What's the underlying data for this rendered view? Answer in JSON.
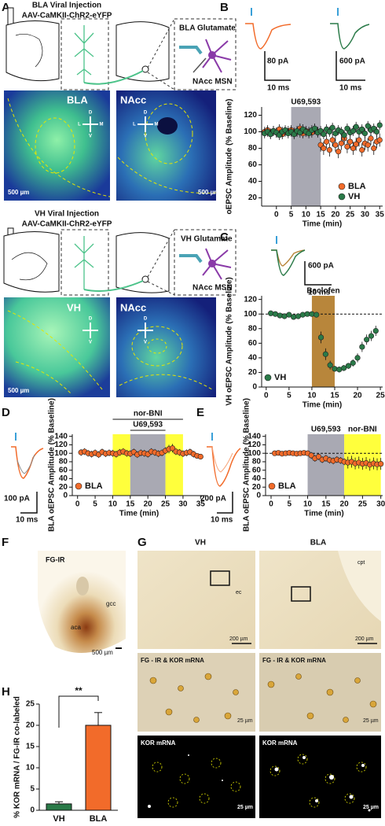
{
  "figure": {
    "A": {
      "letter": "A",
      "top": {
        "title": "BLA Viral Injection",
        "virus": "AAV-CaMKII-ChR2-eYFP",
        "inset_top": "BLA Glutamate",
        "inset_bottom": "NAcc MSN",
        "image_left": "BLA",
        "image_right": "NAcc",
        "scale_left": "500 µm",
        "scale_right": "500 µm"
      },
      "bottom": {
        "title": "VH Viral Injection",
        "virus": "AAV-CaMKII-ChR2-eYFP",
        "inset_top": "VH Glutamate",
        "inset_bottom": "NAcc MSN",
        "image_left": "VH",
        "image_right": "NAcc",
        "scale_left": "500 µm"
      },
      "compass": [
        "D",
        "V",
        "L",
        "M"
      ]
    },
    "B": {
      "letter": "B",
      "trace_left": {
        "y_scale": "80 pA",
        "x_scale": "10 ms"
      },
      "trace_right": {
        "y_scale": "600 pA",
        "x_scale": "10 ms"
      }
    },
    "C": {
      "letter": "C",
      "trace": {
        "y_scale": "600 pA",
        "x_scale": "10 ms"
      }
    },
    "D": {
      "letter": "D",
      "trace": {
        "y_scale": "100 pA",
        "x_scale": "10 ms"
      }
    },
    "E": {
      "letter": "E",
      "trace": {
        "y_scale": "200 pA",
        "x_scale": "10 ms"
      }
    },
    "F": {
      "letter": "F",
      "label": "FG-IR",
      "gcc": "gcc",
      "aca": "aca",
      "scale": "500 µm"
    },
    "G": {
      "letter": "G",
      "col_left": "VH",
      "col_right": "BLA",
      "ec": "ec",
      "cpt": "cpt",
      "scale_top": "200 µm",
      "row2_left": "FG - IR & KOR mRNA",
      "row2_right": "FG - IR &  KOR mRNA",
      "row3": "KOR mRNA",
      "scale_small": "25 µm"
    },
    "H": {
      "letter": "H"
    }
  },
  "chart_data": [
    {
      "type": "scatter",
      "xlabel": "Time (min)",
      "ylabel": "oEPSC Amplitude (% Baseline)",
      "x": [
        -4,
        -3,
        -2,
        -1,
        0,
        1,
        2,
        3,
        4,
        5,
        6,
        7,
        8,
        9,
        10,
        11,
        12,
        13,
        14,
        15,
        16,
        17,
        18,
        19,
        20,
        21,
        22,
        23,
        24,
        25,
        26,
        27,
        28,
        29,
        30,
        31,
        32,
        33,
        34,
        35
      ],
      "series": [
        {
          "name": "BLA",
          "color": "#f26b2a",
          "values": [
            100,
            102,
            98,
            101,
            99,
            103,
            97,
            100,
            101,
            102,
            99,
            100,
            104,
            98,
            101,
            100,
            99,
            103,
            100,
            84,
            80,
            88,
            78,
            90,
            84,
            76,
            86,
            92,
            82,
            88,
            80,
            85,
            90,
            78,
            86,
            84,
            92,
            80,
            88,
            90
          ],
          "errors": [
            6,
            6,
            6,
            6,
            6,
            6,
            6,
            6,
            6,
            6,
            6,
            6,
            6,
            6,
            6,
            6,
            6,
            6,
            6,
            8,
            8,
            8,
            8,
            8,
            8,
            8,
            8,
            8,
            8,
            8,
            8,
            8,
            8,
            8,
            8,
            8,
            8,
            8,
            8,
            8
          ]
        },
        {
          "name": "VH",
          "color": "#2a7a48",
          "values": [
            98,
            100,
            97,
            101,
            99,
            96,
            100,
            102,
            98,
            100,
            97,
            101,
            99,
            103,
            100,
            98,
            102,
            104,
            99,
            101,
            97,
            103,
            100,
            105,
            98,
            102,
            100,
            96,
            104,
            99,
            101,
            106,
            100,
            103,
            98,
            107,
            102,
            104,
            100,
            108
          ],
          "errors": [
            6,
            6,
            6,
            6,
            6,
            6,
            6,
            6,
            6,
            6,
            6,
            6,
            6,
            6,
            6,
            6,
            6,
            6,
            6,
            6,
            6,
            6,
            6,
            6,
            6,
            6,
            6,
            6,
            6,
            6,
            6,
            6,
            6,
            6,
            6,
            6,
            6,
            6,
            6,
            6
          ]
        }
      ],
      "bands": [
        {
          "from": 5,
          "to": 15,
          "color": "#a9a9b3",
          "label": "U69,593"
        }
      ],
      "xlim": [
        -5,
        36
      ],
      "ylim": [
        10,
        130
      ],
      "xticks": [
        0,
        5,
        10,
        15,
        20,
        25,
        30,
        35
      ],
      "yticks": [
        20,
        40,
        60,
        80,
        100,
        120
      ],
      "legend": "lower right"
    },
    {
      "type": "scatter",
      "xlabel": "Time (min)",
      "ylabel": "VH oEPSC Amplitude (% Baseline)",
      "x": [
        1,
        2,
        3,
        4,
        5,
        6,
        7,
        8,
        9,
        10,
        11,
        12,
        13,
        14,
        15,
        16,
        17,
        18,
        19,
        20,
        21,
        22,
        23,
        24
      ],
      "series": [
        {
          "name": "VH",
          "color": "#2a7a48",
          "values": [
            101,
            100,
            98,
            97,
            99,
            96,
            97,
            99,
            100,
            100,
            99,
            68,
            45,
            30,
            25,
            24,
            26,
            29,
            33,
            40,
            55,
            65,
            70,
            77
          ],
          "errors": [
            3,
            3,
            3,
            3,
            3,
            3,
            3,
            3,
            3,
            3,
            3,
            8,
            8,
            6,
            4,
            4,
            4,
            4,
            5,
            6,
            7,
            7,
            7,
            7
          ]
        }
      ],
      "bands": [
        {
          "from": 10,
          "to": 15,
          "color": "#b8863b",
          "label": "Baclofen"
        }
      ],
      "reference_line": 100,
      "xlim": [
        -1,
        25.5
      ],
      "ylim": [
        0,
        125
      ],
      "xticks": [
        0,
        5,
        10,
        15,
        20,
        25
      ],
      "yticks": [
        0,
        20,
        40,
        60,
        80,
        100,
        120
      ],
      "legend": "lower left"
    },
    {
      "type": "scatter",
      "xlabel": "Time (min)",
      "ylabel": "BLA oEPSC Amplitude (% Baseline)",
      "x": [
        1,
        2,
        3,
        4,
        5,
        6,
        7,
        8,
        9,
        10,
        11,
        12,
        13,
        14,
        15,
        16,
        17,
        18,
        19,
        20,
        21,
        22,
        23,
        24,
        25,
        26,
        27,
        28,
        29,
        30,
        31,
        32,
        33,
        34,
        35
      ],
      "series": [
        {
          "name": "BLA",
          "color": "#f26b2a",
          "values": [
            102,
            104,
            100,
            98,
            101,
            97,
            103,
            99,
            101,
            100,
            98,
            102,
            104,
            100,
            99,
            103,
            97,
            101,
            100,
            98,
            104,
            102,
            99,
            101,
            106,
            110,
            112,
            104,
            102,
            99,
            101,
            103,
            98,
            94,
            92
          ],
          "errors": [
            8,
            8,
            8,
            8,
            8,
            8,
            8,
            8,
            8,
            8,
            8,
            8,
            8,
            8,
            8,
            8,
            8,
            8,
            8,
            8,
            8,
            8,
            8,
            8,
            8,
            10,
            10,
            8,
            8,
            8,
            8,
            8,
            8,
            6,
            6
          ]
        }
      ],
      "bands": [
        {
          "from": 10,
          "to": 15,
          "color": "#ffff3c"
        },
        {
          "from": 15,
          "to": 25,
          "color": "#a9a9b3"
        },
        {
          "from": 25,
          "to": 30,
          "color": "#ffff3c"
        }
      ],
      "brackets": [
        {
          "from": 10,
          "to": 30,
          "label": "nor-BNI"
        },
        {
          "from": 15,
          "to": 25,
          "label": "U69,593"
        }
      ],
      "xlim": [
        -1.5,
        36.5
      ],
      "ylim": [
        0,
        145
      ],
      "xticks": [
        0,
        5,
        10,
        15,
        20,
        25,
        30,
        35
      ],
      "yticks": [
        0,
        20,
        40,
        60,
        80,
        100,
        120,
        140
      ],
      "legend": "lower left"
    },
    {
      "type": "scatter",
      "xlabel": "Time (min)",
      "ylabel": "BLA oEPSC Amplitude (% Baseline)",
      "x": [
        1,
        2,
        3,
        4,
        5,
        6,
        7,
        8,
        9,
        10,
        11,
        12,
        13,
        14,
        15,
        16,
        17,
        18,
        19,
        20,
        21,
        22,
        23,
        24,
        25,
        26,
        27,
        28,
        29,
        30
      ],
      "series": [
        {
          "name": "BLA",
          "color": "#f26b2a",
          "values": [
            100,
            101,
            99,
            100,
            101,
            100,
            99,
            100,
            101,
            100,
            95,
            88,
            92,
            85,
            88,
            84,
            82,
            85,
            83,
            80,
            78,
            80,
            76,
            78,
            75,
            77,
            73,
            76,
            74,
            75
          ],
          "errors": [
            4,
            4,
            4,
            4,
            4,
            4,
            4,
            4,
            4,
            4,
            8,
            8,
            8,
            8,
            8,
            8,
            8,
            8,
            8,
            8,
            14,
            14,
            14,
            14,
            14,
            14,
            14,
            14,
            14,
            14
          ]
        }
      ],
      "bands": [
        {
          "from": 10,
          "to": 20,
          "color": "#a9a9b3",
          "label": "U69,593"
        },
        {
          "from": 20,
          "to": 30,
          "color": "#ffff3c",
          "label": "nor-BNI"
        }
      ],
      "reference_line": 100,
      "xlim": [
        -1.5,
        30.5
      ],
      "ylim": [
        0,
        145
      ],
      "xticks": [
        0,
        5,
        10,
        15,
        20,
        25,
        30
      ],
      "yticks": [
        0,
        20,
        40,
        60,
        80,
        100,
        120,
        140
      ],
      "legend": "lower left"
    },
    {
      "type": "bar",
      "ylabel": "% KOR mRNA / FG-IR co-labeled",
      "categories": [
        "VH",
        "BLA"
      ],
      "values": [
        1.5,
        20
      ],
      "errors": [
        0.5,
        3
      ],
      "colors": [
        "#2a7a48",
        "#f26b2a"
      ],
      "annotation": "**",
      "ylim": [
        0,
        25
      ],
      "yticks": [
        0,
        5,
        10,
        15,
        20,
        25
      ]
    }
  ]
}
